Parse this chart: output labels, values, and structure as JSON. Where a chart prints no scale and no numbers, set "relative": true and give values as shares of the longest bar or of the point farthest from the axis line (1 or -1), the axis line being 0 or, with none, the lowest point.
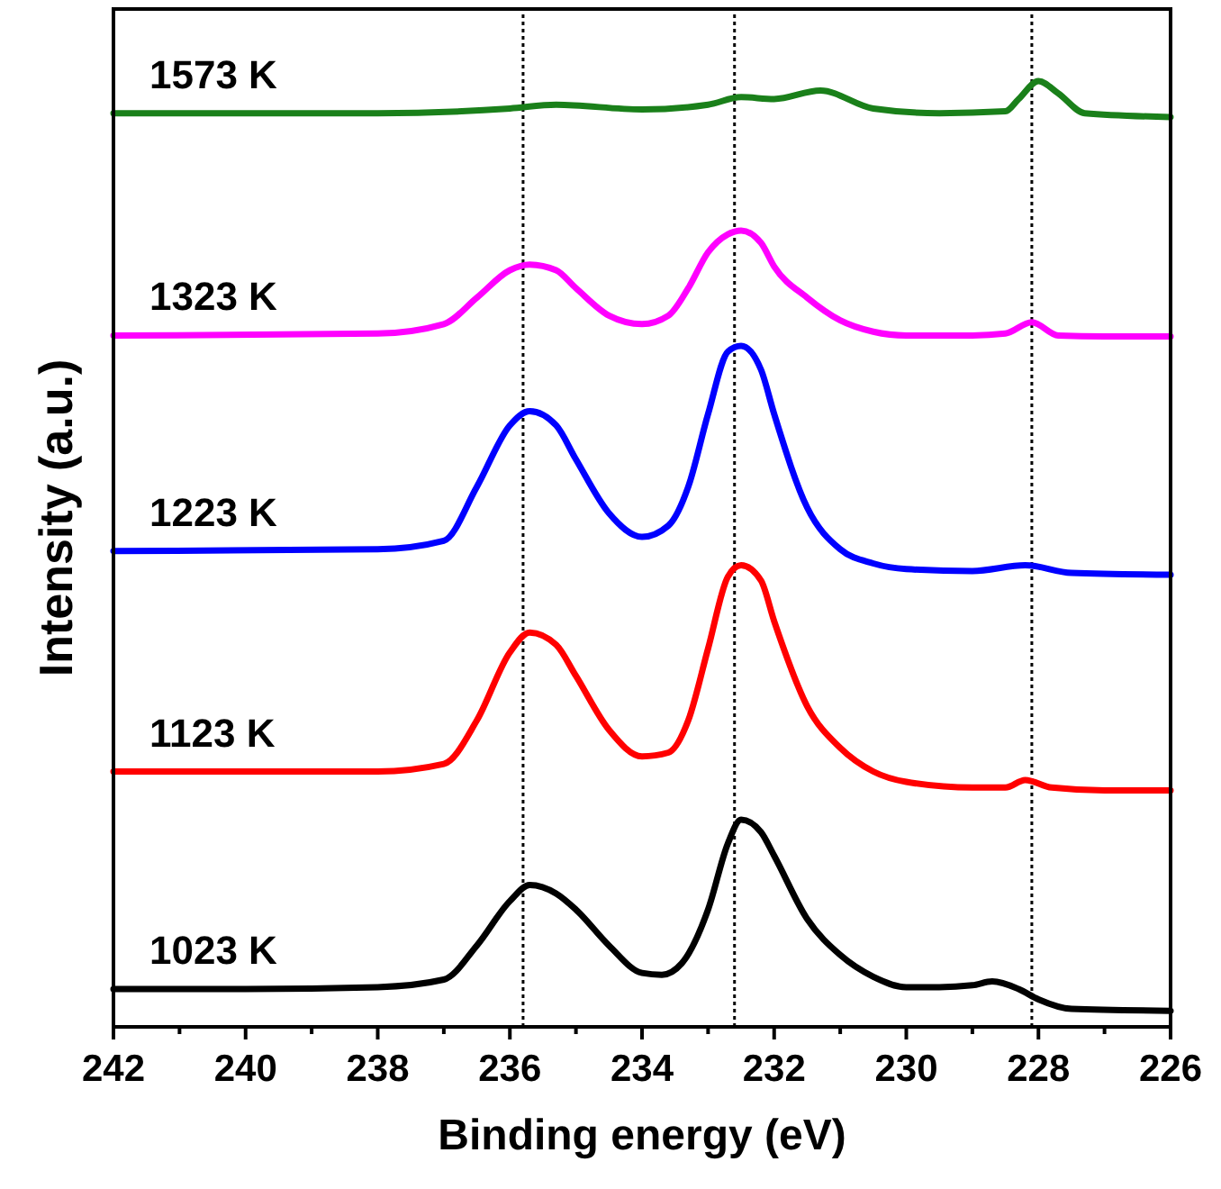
{
  "chart_data": {
    "type": "line",
    "xlabel": "Binding energy (eV)",
    "ylabel": "Intensity (a.u.)",
    "relative": true,
    "xlim": [
      242,
      226
    ],
    "xticks": [
      242,
      240,
      238,
      236,
      234,
      232,
      230,
      228,
      226
    ],
    "legend": false,
    "marker": "none",
    "line_style": "solid",
    "ref_lines": [
      {
        "axis": "x",
        "value": 235.8,
        "color": "#000000",
        "line_style": "dotted"
      },
      {
        "axis": "x",
        "value": 232.6,
        "color": "#000000",
        "line_style": "dotted"
      },
      {
        "axis": "x",
        "value": 228.1,
        "color": "#000000",
        "line_style": "dotted"
      }
    ],
    "series": [
      {
        "name": "1023 K",
        "color": "#000000",
        "x": [
          242,
          240,
          238,
          237,
          236.5,
          236,
          235.7,
          235.3,
          235,
          234.5,
          234,
          233.7,
          233.4,
          233,
          232.7,
          232.5,
          232.2,
          232,
          231.5,
          231,
          230.5,
          230,
          229.5,
          229,
          228.7,
          228.3,
          228,
          227.5,
          226
        ],
        "values": [
          0.04,
          0.04,
          0.042,
          0.05,
          0.086,
          0.133,
          0.15,
          0.141,
          0.124,
          0.086,
          0.057,
          0.055,
          0.067,
          0.124,
          0.194,
          0.219,
          0.206,
          0.181,
          0.114,
          0.076,
          0.053,
          0.042,
          0.042,
          0.044,
          0.048,
          0.04,
          0.029,
          0.019,
          0.017
        ]
      },
      {
        "name": "1123 K",
        "color": "#ff0000",
        "x": [
          242,
          238,
          237,
          236.5,
          236,
          235.7,
          235.3,
          235,
          234.5,
          234,
          233.6,
          233.3,
          233,
          232.7,
          232.5,
          232.2,
          232,
          231.5,
          231,
          230.5,
          230,
          229,
          228.5,
          228.2,
          227.8,
          227,
          226
        ],
        "values": [
          0.27,
          0.27,
          0.278,
          0.324,
          0.396,
          0.417,
          0.404,
          0.371,
          0.314,
          0.286,
          0.29,
          0.324,
          0.4,
          0.476,
          0.488,
          0.472,
          0.429,
          0.339,
          0.295,
          0.27,
          0.259,
          0.253,
          0.253,
          0.261,
          0.253,
          0.25,
          0.25
        ]
      },
      {
        "name": "1223 K",
        "color": "#0000ff",
        "x": [
          242,
          238,
          237,
          236.5,
          236,
          235.7,
          235.3,
          235,
          234.5,
          234,
          233.6,
          233.3,
          233,
          232.7,
          232.5,
          232.2,
          232,
          231.5,
          231,
          230.5,
          230,
          229,
          228.2,
          227.5,
          226
        ],
        "values": [
          0.503,
          0.505,
          0.514,
          0.571,
          0.636,
          0.651,
          0.636,
          0.6,
          0.543,
          0.518,
          0.53,
          0.571,
          0.648,
          0.714,
          0.72,
          0.695,
          0.648,
          0.549,
          0.505,
          0.49,
          0.484,
          0.482,
          0.488,
          0.48,
          0.478
        ]
      },
      {
        "name": "1323 K",
        "color": "#ff00ff",
        "x": [
          242,
          238,
          237,
          236.5,
          236,
          235.7,
          235.3,
          235,
          234.5,
          234,
          233.6,
          233.3,
          233,
          232.7,
          232.5,
          232.2,
          232,
          231.5,
          231,
          230.5,
          230,
          229,
          228.5,
          228.1,
          227.7,
          227,
          226
        ],
        "values": [
          0.731,
          0.733,
          0.743,
          0.771,
          0.8,
          0.806,
          0.8,
          0.781,
          0.752,
          0.743,
          0.752,
          0.781,
          0.819,
          0.838,
          0.842,
          0.829,
          0.804,
          0.771,
          0.747,
          0.735,
          0.731,
          0.731,
          0.733,
          0.745,
          0.731,
          0.73,
          0.73
        ]
      },
      {
        "name": "1573 K",
        "color": "#1a801a",
        "x": [
          242,
          238,
          236,
          235.3,
          234,
          233,
          232.5,
          232,
          231.3,
          230.5,
          229.5,
          228.5,
          228.3,
          228,
          227.7,
          227.3,
          226
        ],
        "values": [
          0.966,
          0.966,
          0.971,
          0.975,
          0.97,
          0.975,
          0.983,
          0.981,
          0.99,
          0.971,
          0.966,
          0.968,
          0.981,
          1,
          0.987,
          0.966,
          0.962
        ]
      }
    ]
  }
}
